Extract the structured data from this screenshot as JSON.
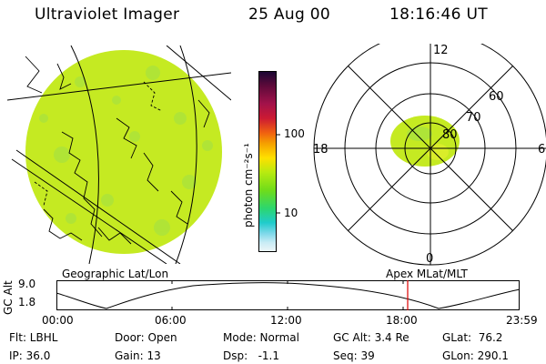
{
  "header": {
    "instrument": "Ultraviolet Imager",
    "date": "25 Aug 00",
    "time": "18:16:46 UT"
  },
  "colorbar": {
    "unit_label": "photon cm⁻²s⁻¹",
    "ticks": [
      "100",
      "10"
    ],
    "colors": [
      "#1a0633",
      "#5e0a3a",
      "#a3124a",
      "#cc1a33",
      "#f06010",
      "#f5a000",
      "#ffe000",
      "#b8ea10",
      "#6fdc1a",
      "#2cd66e",
      "#20cccc",
      "#7fd8ea",
      "#c9ecf5",
      "#eef6f8"
    ]
  },
  "geo_panel": {
    "caption": "Geographic Lat/Lon",
    "disk_color": "#c5ea22"
  },
  "polar_panel": {
    "caption": "Apex MLat/MLT",
    "mlt_labels": {
      "top": "12",
      "bottom": "0",
      "left": "18",
      "right": "6"
    },
    "lat_labels": [
      "60",
      "70",
      "80"
    ]
  },
  "altitude_plot": {
    "ylabel": "GC Alt",
    "y_ticks": [
      "9.0",
      "1.8"
    ],
    "x_ticks": [
      "00:00",
      "06:00",
      "12:00",
      "18:00",
      "23:59"
    ],
    "marker_color": "#dd0000"
  },
  "footer": {
    "row1": [
      "Flt: LBHL",
      "Door: Open",
      "Mode: Normal",
      "GC Alt: 3.4 Re",
      "GLat:  76.2"
    ],
    "row2": [
      "IP: 36.0",
      "Gain: 13",
      "Dsp:   -1.1",
      "Seq: 39",
      "GLon: 290.1"
    ]
  }
}
